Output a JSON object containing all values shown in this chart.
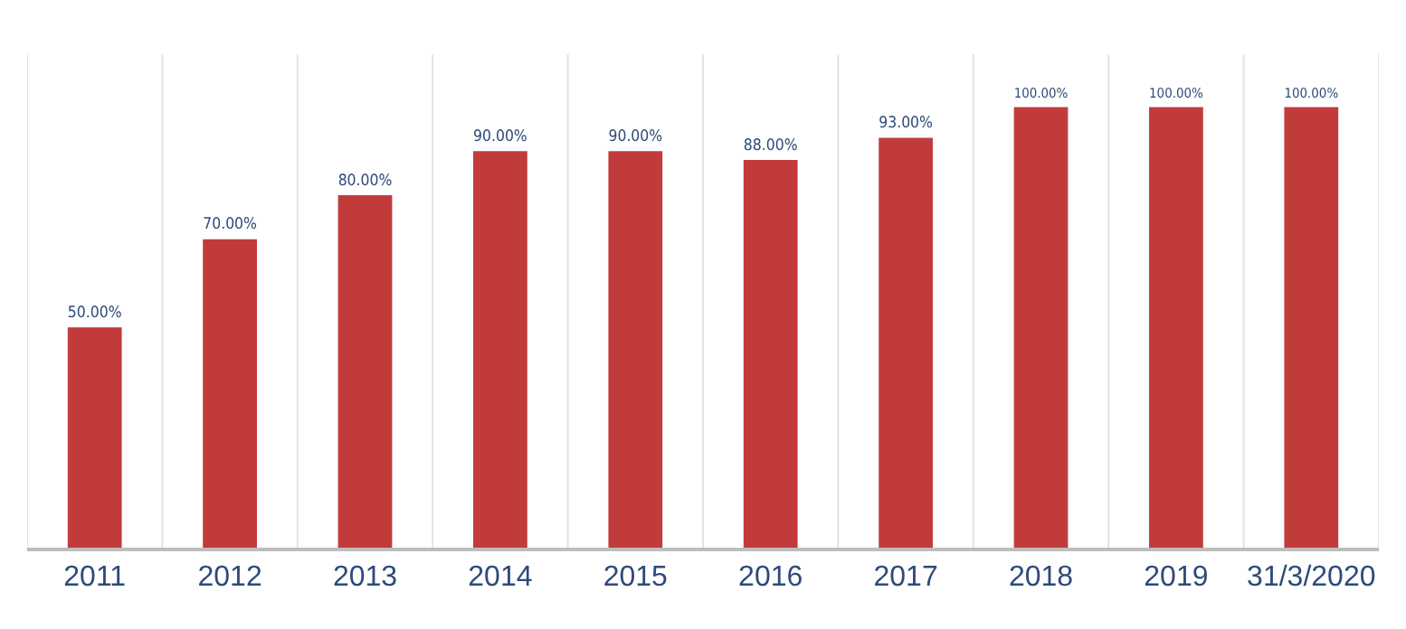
{
  "chart_data": {
    "type": "bar",
    "categories": [
      "2011",
      "2012",
      "2013",
      "2014",
      "2015",
      "2016",
      "2017",
      "2018",
      "2019",
      "31/3/2020"
    ],
    "values": [
      50,
      70,
      80,
      90,
      90,
      88,
      93,
      100,
      100,
      100
    ],
    "value_labels": [
      "50.00%",
      "70.00%",
      "80.00%",
      "90.00%",
      "90.00%",
      "88.00%",
      "93.00%",
      "100.00%",
      "100.00%",
      "100.00%"
    ],
    "color": "#c23b3b",
    "grid": "x"
  }
}
